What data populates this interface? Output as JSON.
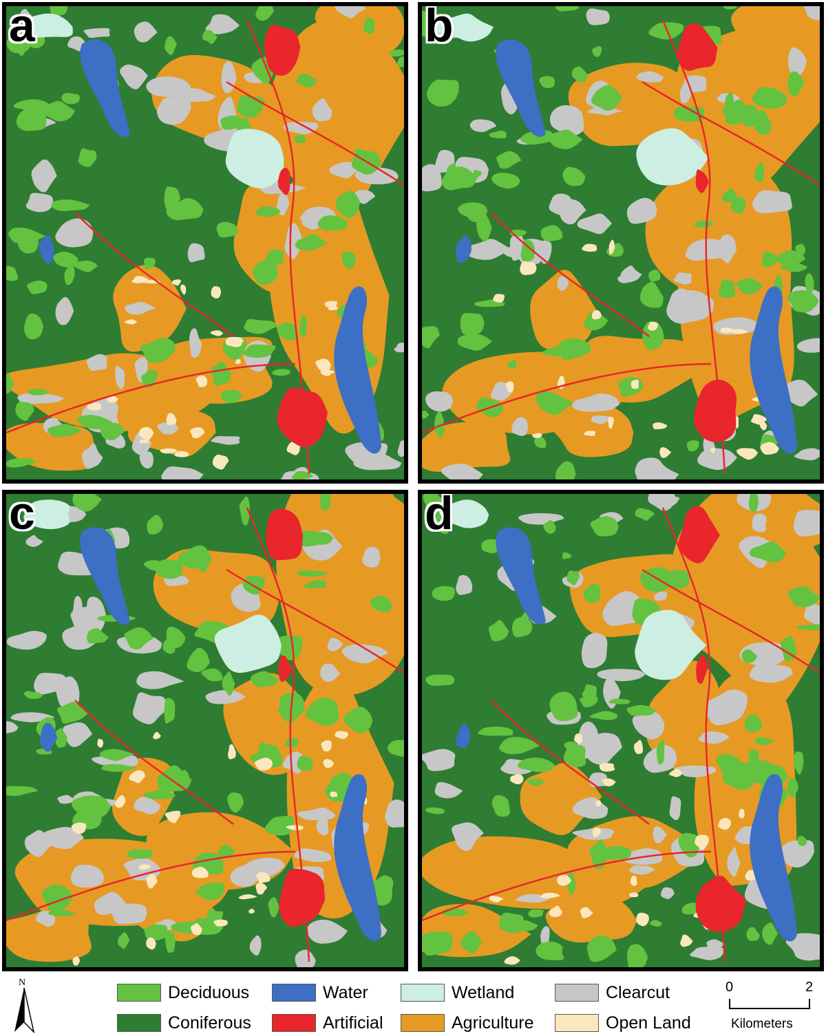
{
  "panels": [
    {
      "id": "a",
      "letter": "a"
    },
    {
      "id": "b",
      "letter": "b"
    },
    {
      "id": "c",
      "letter": "c"
    },
    {
      "id": "d",
      "letter": "d"
    }
  ],
  "legend": {
    "classes": [
      {
        "key": "deciduous",
        "label": "Deciduous",
        "color": "#63c23f"
      },
      {
        "key": "water",
        "label": "Water",
        "color": "#3d6fc4"
      },
      {
        "key": "wetland",
        "label": "Wetland",
        "color": "#cdeee2"
      },
      {
        "key": "clearcut",
        "label": "Clearcut",
        "color": "#c7c7c7"
      },
      {
        "key": "coniferous",
        "label": "Coniferous",
        "color": "#2e7d32"
      },
      {
        "key": "artificial",
        "label": "Artificial",
        "color": "#e8262b"
      },
      {
        "key": "agriculture",
        "label": "Agriculture",
        "color": "#e69a24"
      },
      {
        "key": "open_land",
        "label": "Open Land",
        "color": "#fbe7bd"
      }
    ]
  },
  "north_arrow": {
    "label": "N",
    "icon": "north-arrow-icon"
  },
  "scale_bar": {
    "start": "0",
    "end": "2",
    "unit": "Kilometers"
  }
}
